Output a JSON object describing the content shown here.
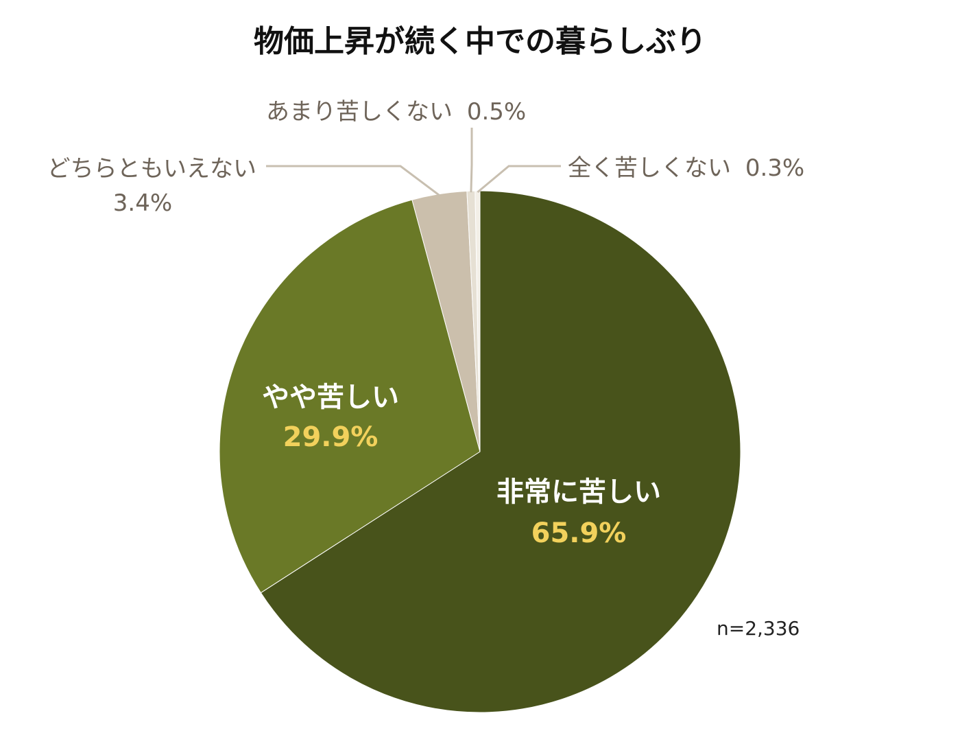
{
  "chart_data": {
    "type": "pie",
    "title": "物価上昇が続く中での暮らしぶり",
    "note": "n=2,336",
    "slices": [
      {
        "label": "非常に苦しい",
        "value": 65.9,
        "value_label": "65.9%",
        "color": "#48531b"
      },
      {
        "label": "やや苦しい",
        "value": 29.9,
        "value_label": "29.9%",
        "color": "#6a7927"
      },
      {
        "label": "どちらともいえない",
        "value": 3.4,
        "value_label": "3.4%",
        "color": "#cbbfac"
      },
      {
        "label": "あまり苦しくない",
        "value": 0.5,
        "value_label": "0.5%",
        "color": "#e6e0d4"
      },
      {
        "label": "全く苦しくない",
        "value": 0.3,
        "value_label": "0.3%",
        "color": "#f3efe7"
      }
    ]
  },
  "colors": {
    "leader_line": "#c8bfb0",
    "slice_border": "#ffffff"
  }
}
